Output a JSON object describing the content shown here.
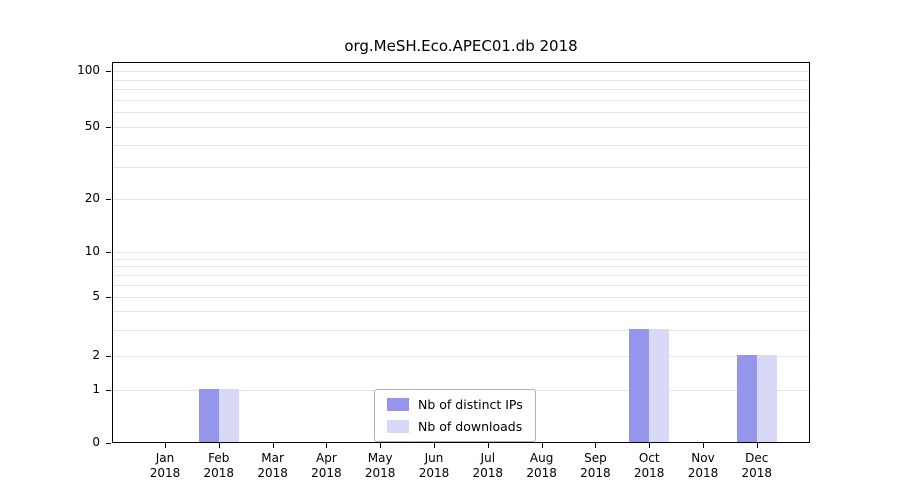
{
  "chart_data": {
    "type": "bar",
    "title": "org.MeSH.Eco.APEC01.db 2018",
    "categories": [
      "Jan",
      "Feb",
      "Mar",
      "Apr",
      "May",
      "Jun",
      "Jul",
      "Aug",
      "Sep",
      "Oct",
      "Nov",
      "Dec"
    ],
    "year_label": "2018",
    "series": [
      {
        "name": "Nb of distinct IPs",
        "color": "#9595ec",
        "values": [
          0,
          1,
          0,
          0,
          0,
          0,
          0,
          0,
          0,
          3,
          0,
          2
        ]
      },
      {
        "name": "Nb of downloads",
        "color": "#d8d8f7",
        "values": [
          0,
          1,
          0,
          0,
          0,
          0,
          0,
          0,
          0,
          3,
          0,
          2
        ]
      }
    ],
    "yticks": [
      0,
      1,
      2,
      5,
      10,
      20,
      50,
      100
    ],
    "minor_gridlines": [
      3,
      4,
      6,
      7,
      8,
      9,
      30,
      40,
      60,
      70,
      80,
      90
    ],
    "scale": "symlog",
    "ylim": [
      0,
      110
    ],
    "xlabel": "",
    "ylabel": "",
    "grid": true,
    "legend_position": "lower-center-inside"
  }
}
